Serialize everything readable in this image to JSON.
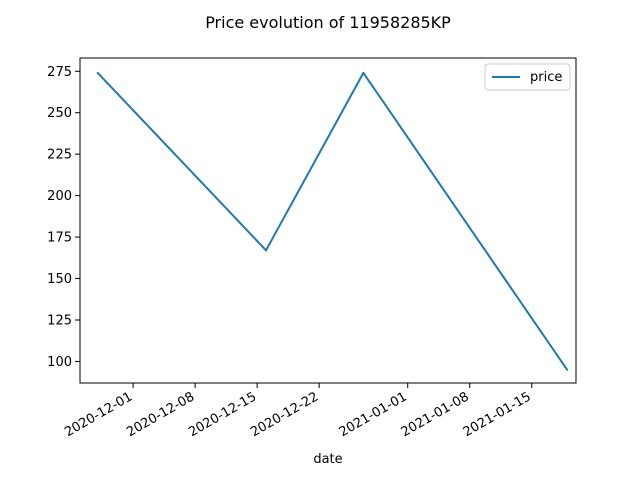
{
  "chart_data": {
    "type": "line",
    "title": "Price evolution of 11958285KP",
    "xlabel": "date",
    "ylabel": "",
    "legend": {
      "position": "top-right"
    },
    "grid": false,
    "x_ticks": [
      "2020-12-01",
      "2020-12-08",
      "2020-12-15",
      "2020-12-22",
      "2021-01-01",
      "2021-01-08",
      "2021-01-15"
    ],
    "y_ticks": [
      100,
      125,
      150,
      175,
      200,
      225,
      250,
      275
    ],
    "xlim": [
      "2020-11-25",
      "2021-01-20"
    ],
    "ylim": [
      87,
      283
    ],
    "series": [
      {
        "name": "price",
        "color": "#1f77b4",
        "x": [
          "2020-11-27",
          "2020-12-16",
          "2020-12-27",
          "2021-01-19"
        ],
        "y": [
          274,
          167,
          274,
          95
        ]
      }
    ]
  }
}
